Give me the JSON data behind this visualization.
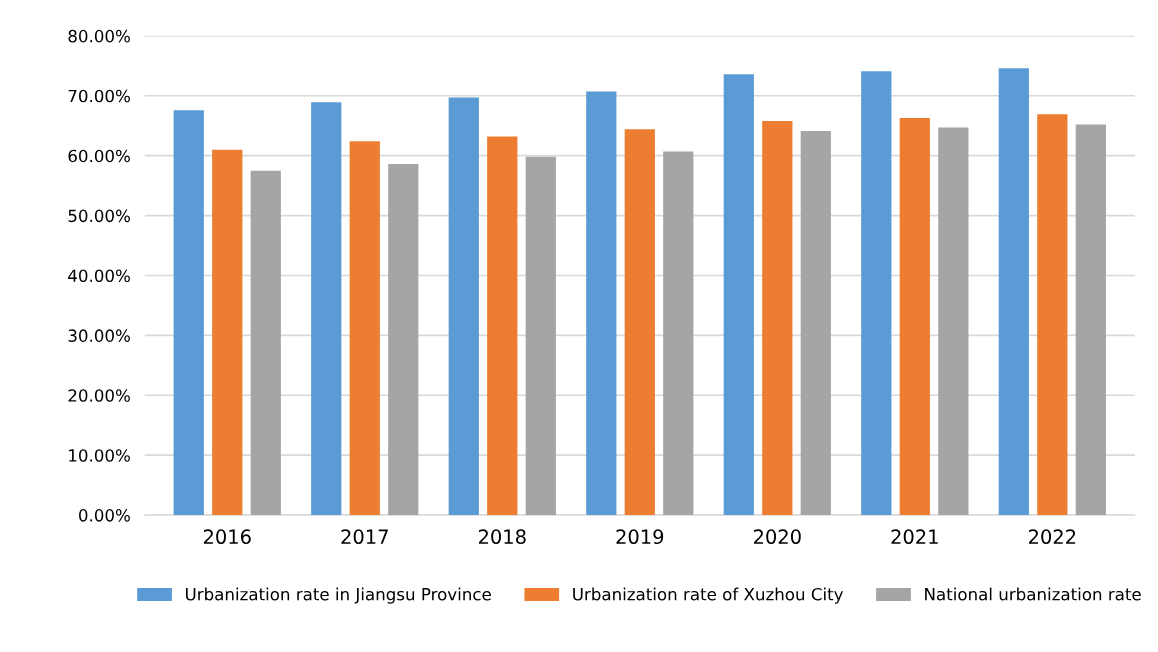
{
  "chart_data": {
    "type": "bar",
    "categories": [
      "2016",
      "2017",
      "2018",
      "2019",
      "2020",
      "2021",
      "2022"
    ],
    "series": [
      {
        "name": "Urbanization rate in Jiangsu Province",
        "color": "#5b9bd5",
        "values": [
          67.6,
          68.9,
          69.7,
          70.7,
          73.6,
          74.1,
          74.6
        ]
      },
      {
        "name": "Urbanization rate of Xuzhou City",
        "color": "#ed7d31",
        "values": [
          61.0,
          62.4,
          63.2,
          64.4,
          65.8,
          66.3,
          66.9
        ]
      },
      {
        "name": "National urbanization rate",
        "color": "#a5a5a5",
        "values": [
          57.5,
          58.6,
          59.8,
          60.7,
          64.1,
          64.7,
          65.2
        ]
      }
    ],
    "ylim": [
      0,
      80
    ],
    "yticks": [
      {
        "value": 0,
        "label": "0.00%"
      },
      {
        "value": 10,
        "label": "10.00%"
      },
      {
        "value": 20,
        "label": "20.00%"
      },
      {
        "value": 30,
        "label": "30.00%"
      },
      {
        "value": 40,
        "label": "40.00%"
      },
      {
        "value": 50,
        "label": "50.00%"
      },
      {
        "value": 60,
        "label": "60.00%"
      },
      {
        "value": 70,
        "label": "70.00%"
      },
      {
        "value": 80,
        "label": "80.00%"
      }
    ],
    "grid": "y",
    "legend": "bottom"
  }
}
